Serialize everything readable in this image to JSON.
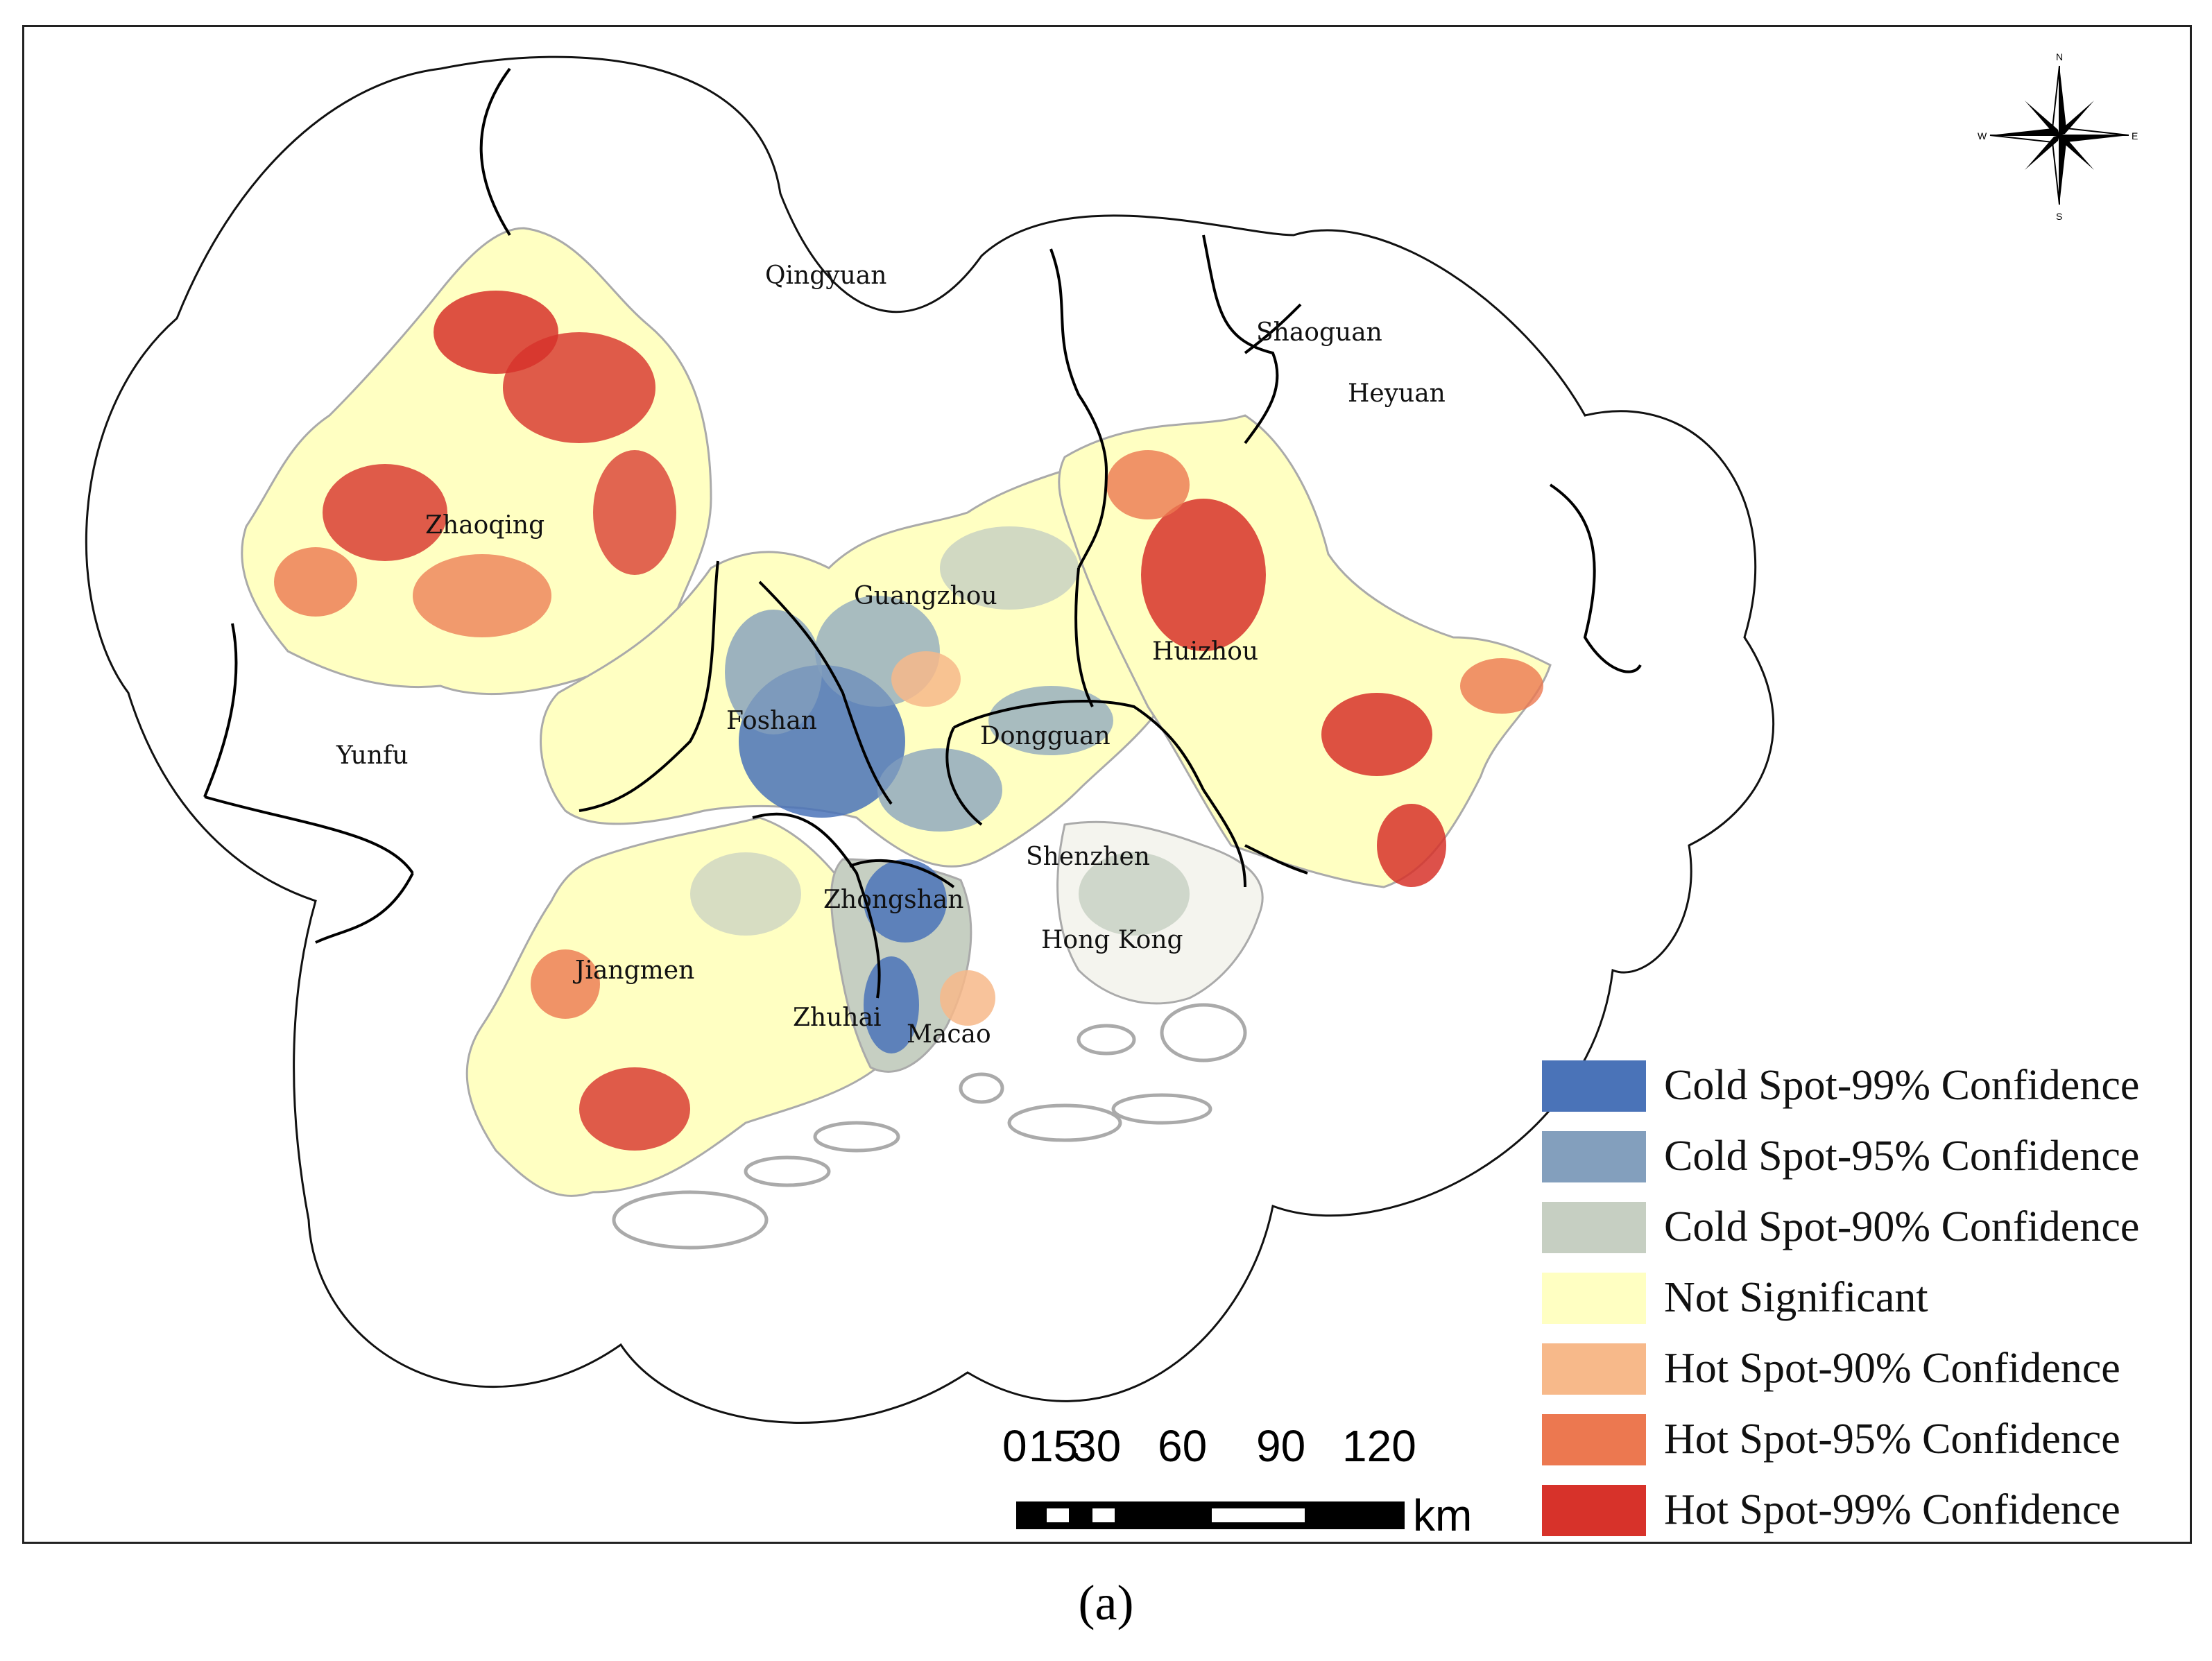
{
  "map": {
    "cities": [
      {
        "name": "Qingyuan"
      },
      {
        "name": "Shaoguan"
      },
      {
        "name": "Heyuan"
      },
      {
        "name": "Zhaoqing"
      },
      {
        "name": "Guangzhou"
      },
      {
        "name": "Huizhou"
      },
      {
        "name": "Foshan"
      },
      {
        "name": "Dongguan"
      },
      {
        "name": "Yunfu"
      },
      {
        "name": "Shenzhen"
      },
      {
        "name": "Zhongshan"
      },
      {
        "name": "Hong Kong"
      },
      {
        "name": "Jiangmen"
      },
      {
        "name": "Zhuhai"
      },
      {
        "name": "Macao"
      }
    ],
    "compass": {
      "n": "N",
      "s": "S",
      "e": "E",
      "w": "W"
    }
  },
  "legend": {
    "items": [
      {
        "label": "Cold Spot-99% Confidence",
        "color": "#4a73b8"
      },
      {
        "label": "Cold Spot-95% Confidence",
        "color": "#839fbd"
      },
      {
        "label": "Cold Spot-90% Confidence",
        "color": "#c6cfc2"
      },
      {
        "label": "Not Significant",
        "color": "#ffffc2"
      },
      {
        "label": "Hot Spot-90% Confidence",
        "color": "#f7b98a"
      },
      {
        "label": "Hot Spot-95% Confidence",
        "color": "#ec7850"
      },
      {
        "label": "Hot Spot-99% Confidence",
        "color": "#d7322a"
      }
    ]
  },
  "scale_bar": {
    "ticks": [
      "0",
      "15",
      "30",
      "60",
      "90",
      "120"
    ],
    "unit": "km"
  },
  "caption": "(a)"
}
